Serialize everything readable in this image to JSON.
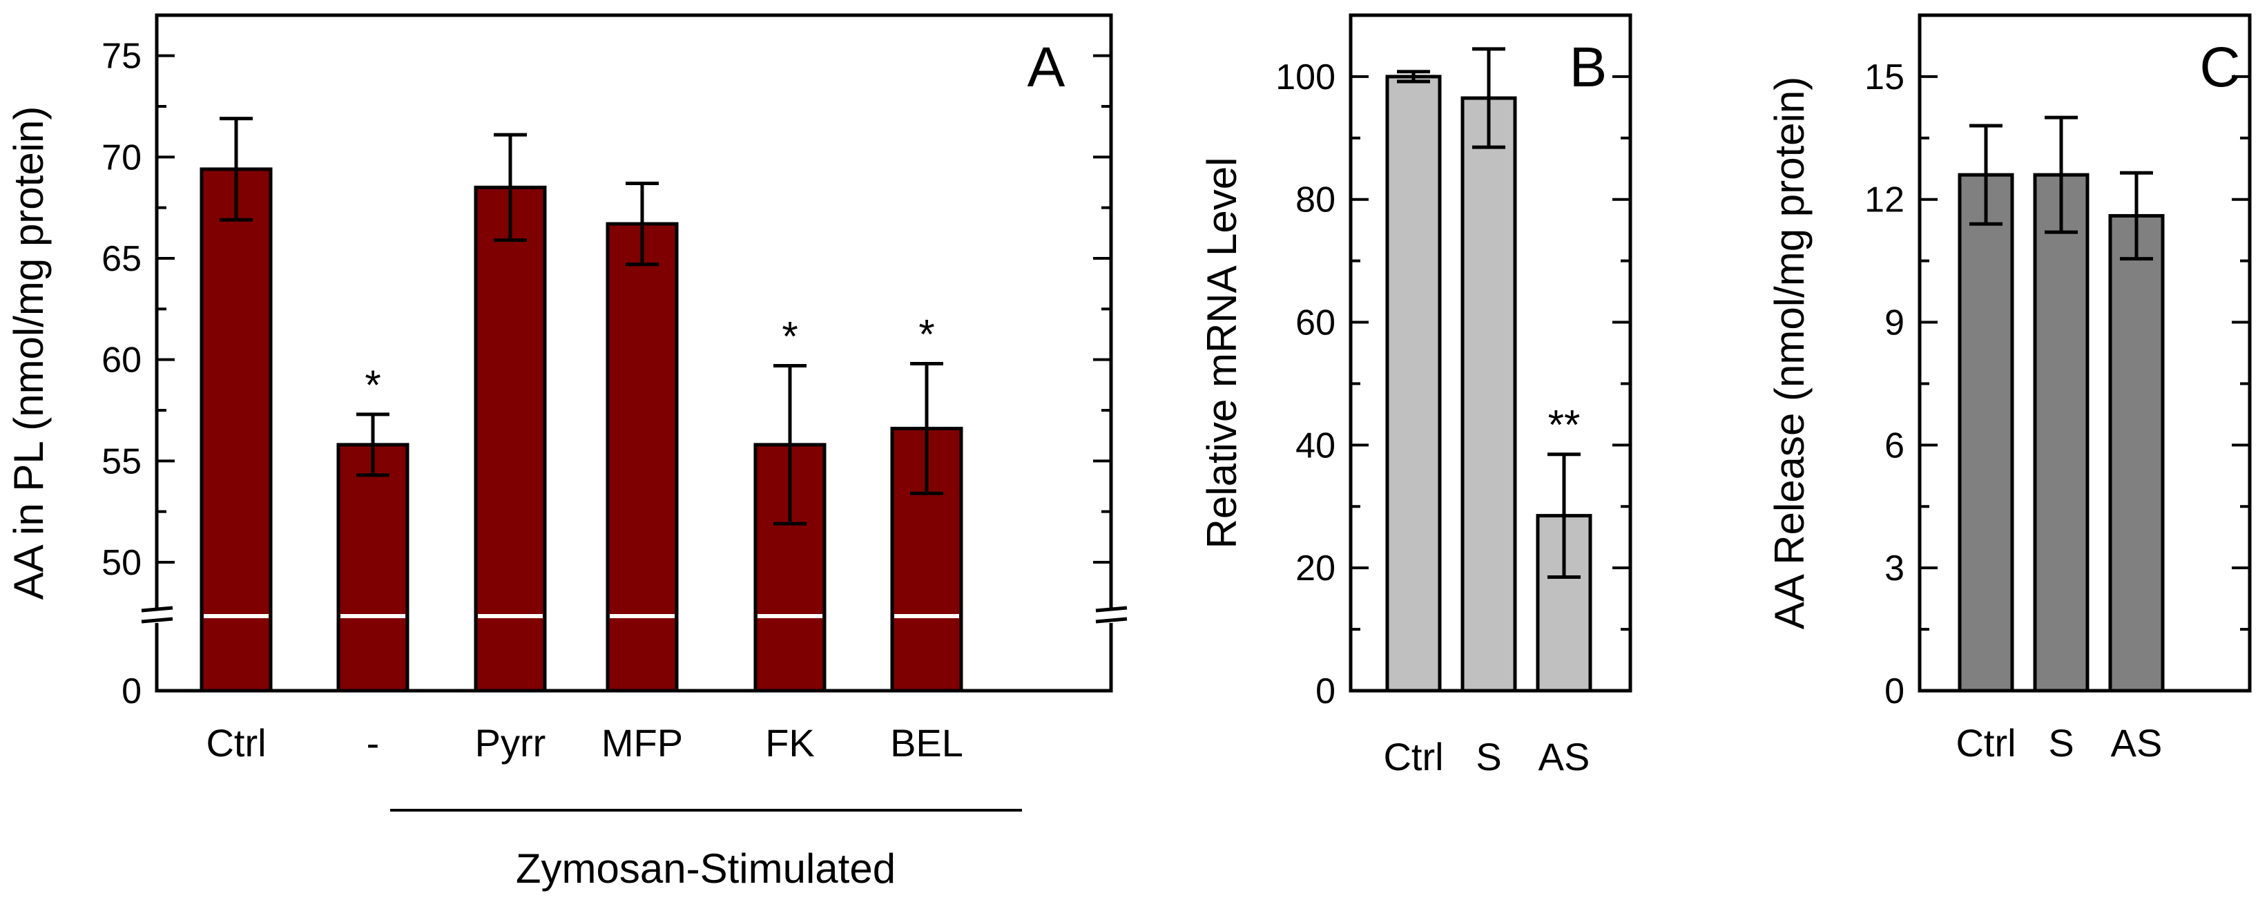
{
  "chart_data": [
    {
      "panel": "A",
      "type": "bar",
      "ylabel": "AA in PL (nmol/mg protein)",
      "ylim_break": [
        0,
        47
      ],
      "ylim": [
        47,
        77
      ],
      "yticks": [
        0,
        50,
        55,
        60,
        65,
        70,
        75
      ],
      "categories": [
        "Ctrl",
        "-",
        "Pyrr",
        "MFP",
        "FK",
        "BEL"
      ],
      "values": [
        69.4,
        55.8,
        68.5,
        66.7,
        55.8,
        56.6
      ],
      "errors": [
        2.5,
        1.5,
        2.6,
        2.0,
        3.9,
        3.2
      ],
      "significance": [
        "",
        "*",
        "",
        "",
        "*",
        "*"
      ],
      "bar_color": "#7f0000",
      "group_label": "Zymosan-Stimulated",
      "group_categories": [
        "-",
        "Pyrr",
        "MFP",
        "FK",
        "BEL"
      ]
    },
    {
      "panel": "B",
      "type": "bar",
      "ylabel": "Relative mRNA Level",
      "ylim": [
        0,
        110
      ],
      "yticks": [
        0,
        20,
        40,
        60,
        80,
        100
      ],
      "categories": [
        "Ctrl",
        "S",
        "AS"
      ],
      "values": [
        100,
        96.5,
        28.5
      ],
      "errors": [
        0.8,
        8,
        10
      ],
      "significance": [
        "",
        "",
        "**"
      ],
      "bar_color": "#c0c0c0"
    },
    {
      "panel": "C",
      "type": "bar",
      "ylabel": "AA Release (nmol/mg protein)",
      "ylim": [
        0,
        16.5
      ],
      "yticks": [
        0,
        3,
        6,
        9,
        12,
        15
      ],
      "categories": [
        "Ctrl",
        "S",
        "AS"
      ],
      "values": [
        12.6,
        12.6,
        11.6
      ],
      "errors": [
        1.2,
        1.4,
        1.05
      ],
      "significance": [
        "",
        "",
        ""
      ],
      "bar_color": "#808080"
    }
  ]
}
